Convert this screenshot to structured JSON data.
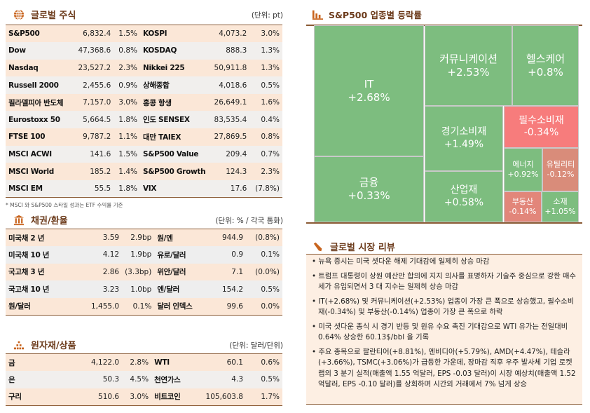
{
  "stocks": {
    "title": "글로벌 주식",
    "unit": "(단위: pt)",
    "footnote": "* MSCI 와 S&P500 스타일 성과는 ETF 수익률 기준",
    "rows": [
      [
        "S&P500",
        "6,832.4",
        "1.5%",
        "KOSPI",
        "4,073.2",
        "3.0%"
      ],
      [
        "Dow",
        "47,368.6",
        "0.8%",
        "KOSDAQ",
        "888.3",
        "1.3%"
      ],
      [
        "Nasdaq",
        "23,527.2",
        "2.3%",
        "Nikkei 225",
        "50,911.8",
        "1.3%"
      ],
      [
        "Russell 2000",
        "2,455.6",
        "0.9%",
        "상해종합",
        "4,018.6",
        "0.5%"
      ],
      [
        "필라델피아 반도체",
        "7,157.0",
        "3.0%",
        "홍콩 항생",
        "26,649.1",
        "1.6%"
      ],
      [
        "Eurostoxx 50",
        "5,664.5",
        "1.8%",
        "인도 SENSEX",
        "83,535.4",
        "0.4%"
      ],
      [
        "FTSE 100",
        "9,787.2",
        "1.1%",
        "대만 TAIEX",
        "27,869.5",
        "0.8%"
      ],
      [
        "MSCI ACWI",
        "141.6",
        "1.5%",
        "S&P500 Value",
        "209.4",
        "0.7%"
      ],
      [
        "MSCI World",
        "185.2",
        "1.4%",
        "S&P500 Growth",
        "124.3",
        "2.3%"
      ],
      [
        "MSCI EM",
        "55.5",
        "1.8%",
        "VIX",
        "17.6",
        "(7.8%)"
      ]
    ]
  },
  "bonds": {
    "title": "채권/환율",
    "unit": "(단위: % / 각국 통화)",
    "rows": [
      [
        "미국채 2 년",
        "3.59",
        "2.9bp",
        "원/엔",
        "944.9",
        "(0.8%)"
      ],
      [
        "미국채 10 년",
        "4.12",
        "1.9bp",
        "유로/달러",
        "0.9",
        "0.1%"
      ],
      [
        "국고채 3 년",
        "2.86",
        "(3.3bp)",
        "위안/달러",
        "7.1",
        "(0.0%)"
      ],
      [
        "국고채 10 년",
        "3.23",
        "1.0bp",
        "엔/달러",
        "154.2",
        "0.5%"
      ],
      [
        "원/달러",
        "1,455.0",
        "0.1%",
        "달러 인덱스",
        "99.6",
        "0.0%"
      ]
    ]
  },
  "commodities": {
    "title": "원자재/상품",
    "unit": "(단위: 달러/단위)",
    "rows": [
      [
        "금",
        "4,122.0",
        "2.8%",
        "WTI",
        "60.1",
        "0.6%"
      ],
      [
        "은",
        "50.3",
        "4.5%",
        "천연가스",
        "4.3",
        "0.5%"
      ],
      [
        "구리",
        "510.6",
        "3.0%",
        "비트코인",
        "105,603.8",
        "1.7%"
      ]
    ]
  },
  "sectors": {
    "title": "S&P500 업종별 등락률",
    "cells": [
      {
        "name": "IT",
        "value": "+2.68%",
        "color": "#7dbd7f"
      },
      {
        "name": "금융",
        "value": "+0.33%",
        "color": "#7dbd7f"
      },
      {
        "name": "커뮤니케이션",
        "value": "+2.53%",
        "color": "#7dbd7f"
      },
      {
        "name": "헬스케어",
        "value": "+0.8%",
        "color": "#7dbd7f"
      },
      {
        "name": "경기소비재",
        "value": "+1.49%",
        "color": "#7dbd7f"
      },
      {
        "name": "산업재",
        "value": "+0.58%",
        "color": "#7dbd7f"
      },
      {
        "name": "필수소비재",
        "value": "-0.34%",
        "color": "#f77c7c"
      },
      {
        "name": "에너지",
        "value": "+0.92%",
        "color": "#7dbd7f"
      },
      {
        "name": "유틸리티",
        "value": "-0.12%",
        "color": "#d98c7a"
      },
      {
        "name": "부동산",
        "value": "-0.14%",
        "color": "#e2867a"
      },
      {
        "name": "소재",
        "value": "+1.05%",
        "color": "#7dbd7f"
      }
    ]
  },
  "review": {
    "title": "글로벌 시장 리뷰",
    "items": [
      "뉴욕 증시는 미국 셧다운 해제 기대감에 일제히 상승 마감",
      "트럼프 대통령이 상원 예산안 합의에 지지 의사를 표명하자 기술주 중심으로 강한 매수세가 유입되면서 3 대 지수는 일제히 상승 마감",
      "IT(+2.68%) 및 커뮤니케이션(+2.53%) 업종이 가장 큰 폭으로 상승했고, 필수소비재(-0.34%) 및 부동산(-0.14%) 업종이 가장 큰 폭으로 하락",
      "미국 셧다운 종식 시 경기 반등 및 원유 수요 촉진 기대감으로 WTI 유가는 전일대비 0.64% 상승한 60.13$/bbl 을 기록",
      "주요 종목으로 팔란티어(+8.81%), 엔비디아(+5.79%), AMD(+4.47%), 테슬라(+3.66%), TSMC(+3.06%)가 급등한 가운데, 장마감 직후 우주 발사체 기업 로켓랩의 3 분기 실적(매출액 1.55 억달러, EPS -0.03 달러)이 시장 예상치(매출액 1.52 억달러, EPS -0.10 달러)를 상회하며 시간외 거래에서 7% 넘게 상승"
    ]
  }
}
